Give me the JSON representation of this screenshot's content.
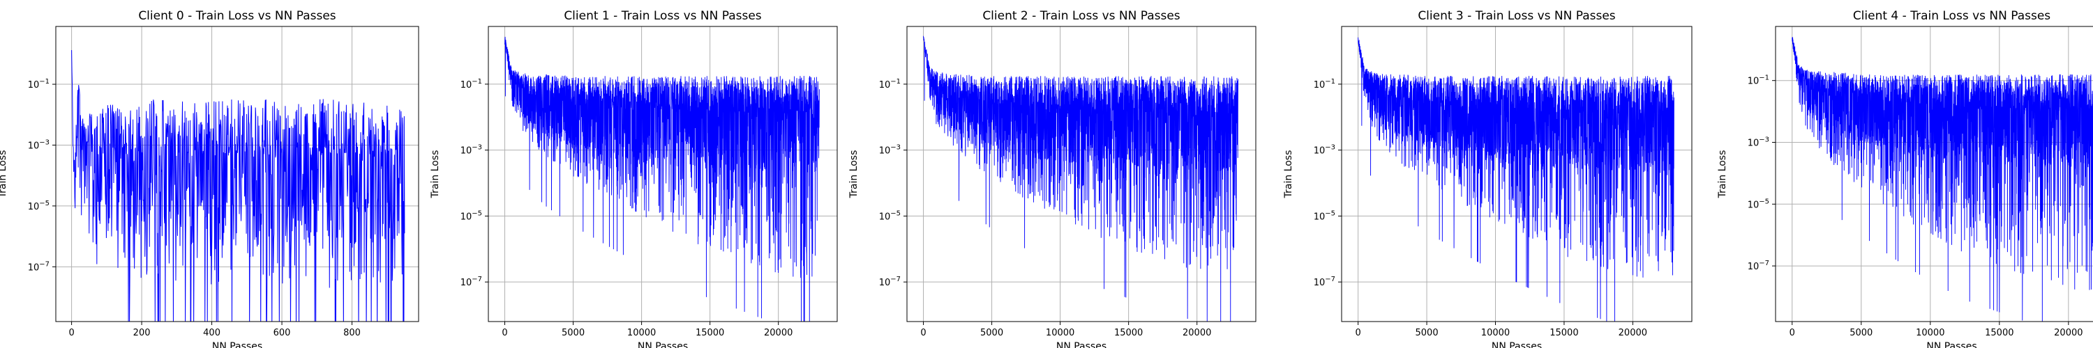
{
  "figure": {
    "background": "#ffffff",
    "line_color": "#0000ff",
    "grid_color": "#b0b0b0"
  },
  "chart_data": [
    {
      "type": "line",
      "title": "Client 0 - Train Loss vs NN Passes",
      "xlabel": "NN Passes",
      "ylabel": "Train Loss",
      "xscale": "linear",
      "yscale": "log",
      "xlim": [
        -45,
        990
      ],
      "ylim_exponent": [
        -8.8,
        0.9
      ],
      "xticks": [
        0,
        200,
        400,
        600,
        800
      ],
      "xtick_labels": [
        "0",
        "200",
        "400",
        "600",
        "800"
      ],
      "yticks_exponent": [
        -7,
        -5,
        -3,
        -1
      ],
      "ytick_labels": [
        "10−7",
        "10−5",
        "10−3",
        "10−1"
      ],
      "grid": true,
      "series": [
        {
          "color": "#0000ff",
          "x": [
            0,
            5,
            10,
            15,
            20,
            40,
            60,
            80,
            100,
            150,
            200,
            300,
            400,
            500,
            600,
            700,
            800,
            900,
            950
          ],
          "y_median_exponent": [
            0.2,
            -3.6,
            -4.5,
            -2.5,
            -1.3,
            -4.0,
            -4.2,
            -4.3,
            -4.4,
            -4.5,
            -4.5,
            -4.6,
            -4.6,
            -4.6,
            -4.6,
            -4.6,
            -4.6,
            -4.6,
            -4.6
          ],
          "y_upper_exponent": [
            0.6,
            -3.0,
            -3.5,
            -1.0,
            -1.0,
            -2.2,
            -1.8,
            -1.8,
            -1.6,
            -1.7,
            -1.5,
            -1.5,
            -1.5,
            -1.5,
            -1.5,
            -1.5,
            -1.4,
            -1.5,
            -1.6
          ],
          "y_lower_exponent": [
            0.2,
            -4.2,
            -5.2,
            -3.2,
            -2.0,
            -6.5,
            -7.0,
            -7.0,
            -7.2,
            -7.3,
            -7.4,
            -7.5,
            -7.6,
            -7.6,
            -7.6,
            -7.7,
            -7.8,
            -7.8,
            -7.8
          ]
        }
      ]
    },
    {
      "type": "line",
      "title": "Client 1 - Train Loss vs NN Passes",
      "xlabel": "NN Passes",
      "ylabel": "Train Loss",
      "xscale": "linear",
      "yscale": "log",
      "xlim": [
        -1200,
        24300
      ],
      "ylim_exponent": [
        -8.2,
        0.75
      ],
      "xticks": [
        0,
        5000,
        10000,
        15000,
        20000
      ],
      "xtick_labels": [
        "0",
        "5000",
        "10000",
        "15000",
        "20000"
      ],
      "yticks_exponent": [
        -7,
        -5,
        -3,
        -1
      ],
      "ytick_labels": [
        "10−7",
        "10−5",
        "10−3",
        "10−1"
      ],
      "grid": true,
      "series": [
        {
          "color": "#0000ff",
          "x": [
            0,
            500,
            1000,
            2000,
            3000,
            5000,
            7500,
            10000,
            12500,
            15000,
            17500,
            20000,
            23000
          ],
          "y_median_exponent": [
            0.3,
            -1.0,
            -1.4,
            -1.8,
            -2.0,
            -2.2,
            -2.4,
            -2.5,
            -2.6,
            -2.6,
            -2.7,
            -2.7,
            -2.7
          ],
          "y_upper_exponent": [
            0.5,
            -0.5,
            -0.6,
            -0.7,
            -0.7,
            -0.75,
            -0.75,
            -0.75,
            -0.75,
            -0.75,
            -0.75,
            -0.75,
            -0.75
          ],
          "y_lower_exponent": [
            0.3,
            -1.6,
            -2.3,
            -2.8,
            -3.2,
            -3.8,
            -4.4,
            -5.0,
            -5.6,
            -6.0,
            -6.4,
            -6.8,
            -7.0
          ]
        }
      ]
    },
    {
      "type": "line",
      "title": "Client 2 - Train Loss vs NN Passes",
      "xlabel": "NN Passes",
      "ylabel": "Train Loss",
      "xscale": "linear",
      "yscale": "log",
      "xlim": [
        -1200,
        24300
      ],
      "ylim_exponent": [
        -8.2,
        0.75
      ],
      "xticks": [
        0,
        5000,
        10000,
        15000,
        20000
      ],
      "xtick_labels": [
        "0",
        "5000",
        "10000",
        "15000",
        "20000"
      ],
      "yticks_exponent": [
        -7,
        -5,
        -3,
        -1
      ],
      "ytick_labels": [
        "10−7",
        "10−5",
        "10−3",
        "10−1"
      ],
      "grid": true,
      "series": [
        {
          "color": "#0000ff",
          "x": [
            0,
            500,
            1000,
            2000,
            3000,
            5000,
            7500,
            10000,
            12500,
            15000,
            17500,
            20000,
            23000
          ],
          "y_median_exponent": [
            0.3,
            -1.0,
            -1.4,
            -1.8,
            -2.0,
            -2.2,
            -2.4,
            -2.5,
            -2.6,
            -2.6,
            -2.7,
            -2.7,
            -2.7
          ],
          "y_upper_exponent": [
            0.5,
            -0.5,
            -0.6,
            -0.7,
            -0.7,
            -0.75,
            -0.75,
            -0.75,
            -0.75,
            -0.75,
            -0.75,
            -0.75,
            -0.75
          ],
          "y_lower_exponent": [
            0.3,
            -1.6,
            -2.3,
            -2.8,
            -3.2,
            -3.9,
            -4.5,
            -5.1,
            -5.6,
            -6.0,
            -6.4,
            -6.7,
            -6.9
          ]
        }
      ]
    },
    {
      "type": "line",
      "title": "Client 3 - Train Loss vs NN Passes",
      "xlabel": "NN Passes",
      "ylabel": "Train Loss",
      "xscale": "linear",
      "yscale": "log",
      "xlim": [
        -1200,
        24300
      ],
      "ylim_exponent": [
        -8.2,
        0.75
      ],
      "xticks": [
        0,
        5000,
        10000,
        15000,
        20000
      ],
      "xtick_labels": [
        "0",
        "5000",
        "10000",
        "15000",
        "20000"
      ],
      "yticks_exponent": [
        -7,
        -5,
        -3,
        -1
      ],
      "ytick_labels": [
        "10−7",
        "10−5",
        "10−3",
        "10−1"
      ],
      "grid": true,
      "series": [
        {
          "color": "#0000ff",
          "x": [
            0,
            500,
            1000,
            2000,
            3000,
            5000,
            7500,
            10000,
            12500,
            15000,
            17500,
            20000,
            23000
          ],
          "y_median_exponent": [
            0.3,
            -1.0,
            -1.4,
            -1.8,
            -2.0,
            -2.2,
            -2.4,
            -2.5,
            -2.6,
            -2.6,
            -2.7,
            -2.7,
            -2.7
          ],
          "y_upper_exponent": [
            0.5,
            -0.5,
            -0.6,
            -0.7,
            -0.7,
            -0.75,
            -0.75,
            -0.75,
            -0.75,
            -0.75,
            -0.75,
            -0.75,
            -0.75
          ],
          "y_lower_exponent": [
            0.3,
            -1.7,
            -2.4,
            -3.0,
            -3.4,
            -4.0,
            -4.6,
            -5.2,
            -5.7,
            -6.2,
            -6.6,
            -7.0,
            -7.1
          ]
        }
      ]
    },
    {
      "type": "line",
      "title": "Client 4 - Train Loss vs NN Passes",
      "xlabel": "NN Passes",
      "ylabel": "Train Loss",
      "xscale": "linear",
      "yscale": "log",
      "xlim": [
        -1200,
        24300
      ],
      "ylim_exponent": [
        -8.8,
        0.75
      ],
      "xticks": [
        0,
        5000,
        10000,
        15000,
        20000
      ],
      "xtick_labels": [
        "0",
        "5000",
        "10000",
        "15000",
        "20000"
      ],
      "yticks_exponent": [
        -7,
        -5,
        -3,
        -1
      ],
      "ytick_labels": [
        "10−7",
        "10−5",
        "10−3",
        "10−1"
      ],
      "grid": true,
      "series": [
        {
          "color": "#0000ff",
          "x": [
            0,
            500,
            1000,
            2000,
            3000,
            5000,
            7500,
            10000,
            12500,
            15000,
            17500,
            20000,
            23000
          ],
          "y_median_exponent": [
            0.3,
            -1.0,
            -1.5,
            -1.9,
            -2.1,
            -2.3,
            -2.5,
            -2.6,
            -2.7,
            -2.7,
            -2.8,
            -2.8,
            -2.8
          ],
          "y_upper_exponent": [
            0.5,
            -0.5,
            -0.6,
            -0.7,
            -0.7,
            -0.8,
            -0.8,
            -0.8,
            -0.8,
            -0.8,
            -0.8,
            -0.8,
            -0.8
          ],
          "y_lower_exponent": [
            0.3,
            -1.7,
            -2.6,
            -3.3,
            -3.8,
            -4.5,
            -5.3,
            -6.0,
            -6.6,
            -7.0,
            -7.4,
            -7.8,
            -8.0
          ]
        }
      ]
    }
  ]
}
